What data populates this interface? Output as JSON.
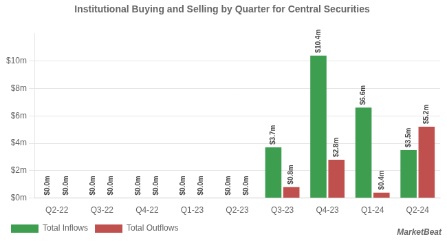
{
  "chart_data": {
    "type": "bar",
    "title": "Institutional Buying and Selling by Quarter for Central Securities",
    "annotation": "MarketBeat",
    "categories": [
      "Q2-22",
      "Q3-22",
      "Q4-22",
      "Q1-23",
      "Q2-23",
      "Q3-23",
      "Q4-23",
      "Q1-24",
      "Q2-24"
    ],
    "series": [
      {
        "name": "Total Inflows",
        "color": "#3d9e50",
        "values": [
          0.0,
          0.0,
          0.0,
          0.0,
          0.0,
          3.7,
          10.4,
          6.6,
          3.5
        ],
        "value_labels": [
          "$0.0m",
          "$0.0m",
          "$0.0m",
          "$0.0m",
          "$0.0m",
          "$3.7m",
          "$10.4m",
          "$6.6m",
          "$3.5m"
        ]
      },
      {
        "name": "Total Outflows",
        "color": "#c0504d",
        "values": [
          0.0,
          0.0,
          0.0,
          0.0,
          0.0,
          0.8,
          2.8,
          0.4,
          5.2
        ],
        "value_labels": [
          "$0.0m",
          "$0.0m",
          "$0.0m",
          "$0.0m",
          "$0.0m",
          "$0.8m",
          "$2.8m",
          "$0.4m",
          "$5.2m"
        ]
      }
    ],
    "ylim": [
      0,
      12
    ],
    "yticks": [
      {
        "value": 0,
        "label": "$0m"
      },
      {
        "value": 2,
        "label": "$2m"
      },
      {
        "value": 4,
        "label": "$4m"
      },
      {
        "value": 6,
        "label": "$6m"
      },
      {
        "value": 8,
        "label": "$8m"
      },
      {
        "value": 10,
        "label": "$10m"
      }
    ],
    "grid": true,
    "legend": "lower left",
    "data_labels": true
  }
}
